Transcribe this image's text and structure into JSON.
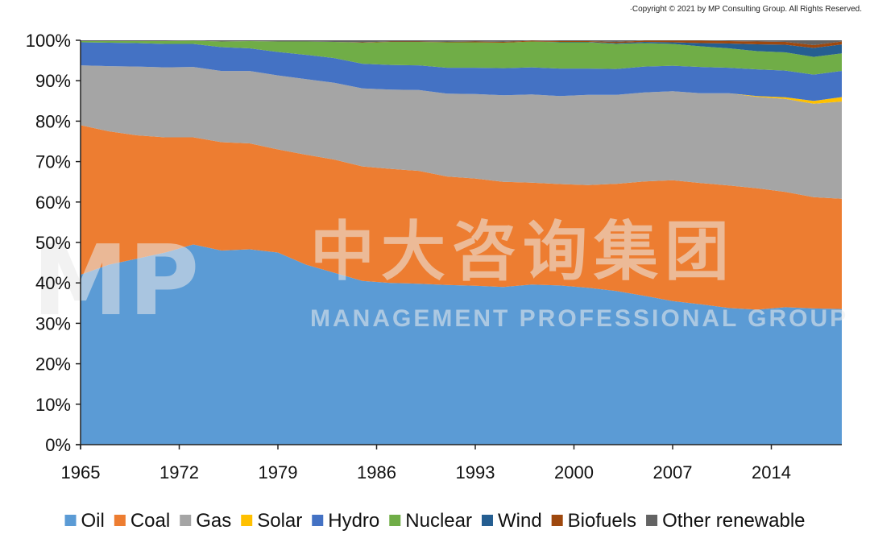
{
  "copyright": "·Copyright © 2021 by MP Consulting Group. All Rights Reserved.",
  "watermark": {
    "logo": "MP",
    "cn": "中大咨询集团",
    "en": "MANAGEMENT PROFESSIONAL GROUP"
  },
  "chart_data": {
    "type": "area",
    "stacked": true,
    "percent": true,
    "x": [
      1965,
      1967,
      1969,
      1971,
      1973,
      1975,
      1977,
      1979,
      1981,
      1983,
      1985,
      1987,
      1989,
      1991,
      1993,
      1995,
      1997,
      1999,
      2001,
      2003,
      2005,
      2007,
      2009,
      2011,
      2013,
      2015,
      2017,
      2019
    ],
    "xticks": [
      "1965",
      "1972",
      "1979",
      "1986",
      "1993",
      "2000",
      "2007",
      "2014"
    ],
    "xtick_values": [
      1965,
      1972,
      1979,
      1986,
      1993,
      2000,
      2007,
      2014
    ],
    "yticks": [
      "0%",
      "10%",
      "20%",
      "30%",
      "40%",
      "50%",
      "60%",
      "70%",
      "80%",
      "90%",
      "100%"
    ],
    "ylim": [
      0,
      100
    ],
    "xlim": [
      1965,
      2019
    ],
    "series": [
      {
        "name": "Oil",
        "color": "#5b9bd5",
        "values": [
          42.0,
          44.5,
          46.0,
          47.5,
          49.5,
          48.0,
          48.3,
          47.5,
          44.5,
          42.5,
          40.5,
          40.0,
          39.8,
          39.5,
          39.3,
          39.0,
          39.6,
          39.4,
          38.8,
          38.0,
          36.8,
          35.5,
          34.7,
          33.8,
          33.4,
          34.0,
          33.7,
          33.2
        ]
      },
      {
        "name": "Coal",
        "color": "#ed7d31",
        "values": [
          37.0,
          33.0,
          30.5,
          28.5,
          26.5,
          26.8,
          26.2,
          25.5,
          27.2,
          28.0,
          28.3,
          28.2,
          27.9,
          26.8,
          26.5,
          26.0,
          25.2,
          25.1,
          25.4,
          26.5,
          28.3,
          29.9,
          30.0,
          30.3,
          30.0,
          28.5,
          27.5,
          27.0
        ]
      },
      {
        "name": "Gas",
        "color": "#a5a5a5",
        "values": [
          14.8,
          16.1,
          17.0,
          17.3,
          17.4,
          17.6,
          17.9,
          18.3,
          18.7,
          19.0,
          19.3,
          19.6,
          20.0,
          20.5,
          20.9,
          21.4,
          21.8,
          21.8,
          22.3,
          22.0,
          22.0,
          22.0,
          22.2,
          22.8,
          22.6,
          23.0,
          23.1,
          23.8
        ]
      },
      {
        "name": "Solar",
        "color": "#ffc000",
        "values": [
          0,
          0,
          0,
          0,
          0,
          0,
          0,
          0,
          0,
          0,
          0,
          0,
          0,
          0,
          0,
          0,
          0,
          0,
          0,
          0,
          0,
          0,
          0,
          0,
          0.2,
          0.4,
          0.7,
          1.1
        ]
      },
      {
        "name": "Hydro",
        "color": "#4472c4",
        "values": [
          5.7,
          5.8,
          5.8,
          5.8,
          5.7,
          5.9,
          5.6,
          5.8,
          6.0,
          6.1,
          6.1,
          6.1,
          6.1,
          6.4,
          6.5,
          6.7,
          6.7,
          6.8,
          6.5,
          6.4,
          6.4,
          6.3,
          6.5,
          6.3,
          6.6,
          6.6,
          6.5,
          6.4
        ]
      },
      {
        "name": "Nuclear",
        "color": "#70ad47",
        "values": [
          0.3,
          0.4,
          0.5,
          0.7,
          0.8,
          1.4,
          1.8,
          2.6,
          3.3,
          4.0,
          5.2,
          5.7,
          5.8,
          6.3,
          6.3,
          6.3,
          6.4,
          6.5,
          6.5,
          6.2,
          5.8,
          5.4,
          5.1,
          4.8,
          4.5,
          4.5,
          4.4,
          4.3
        ]
      },
      {
        "name": "Wind",
        "color": "#255e91",
        "values": [
          0,
          0,
          0,
          0,
          0,
          0,
          0,
          0,
          0,
          0,
          0,
          0,
          0,
          0,
          0,
          0,
          0,
          0.1,
          0.1,
          0.2,
          0.3,
          0.4,
          0.8,
          1.2,
          1.7,
          1.9,
          2.2,
          2.2
        ]
      },
      {
        "name": "Biofuels",
        "color": "#9e480e",
        "values": [
          0,
          0,
          0,
          0,
          0,
          0,
          0,
          0,
          0,
          0,
          0.1,
          0.1,
          0.1,
          0.1,
          0.2,
          0.2,
          0.2,
          0.2,
          0.2,
          0.3,
          0.3,
          0.4,
          0.6,
          0.6,
          0.7,
          0.7,
          0.7,
          0.7
        ]
      },
      {
        "name": "Other renewable",
        "color": "#636363",
        "values": [
          0.2,
          0.2,
          0.2,
          0.2,
          0.1,
          0.3,
          0.2,
          0.3,
          0.3,
          0.4,
          0.5,
          0.3,
          0.3,
          0.4,
          0.3,
          0.4,
          0.1,
          0.2,
          0.2,
          0.4,
          0.1,
          0.1,
          0.1,
          0.2,
          0.3,
          0.4,
          1.2,
          0.3
        ]
      }
    ],
    "title": "",
    "xlabel": "",
    "ylabel": "",
    "grid": false,
    "legend_position": "bottom"
  }
}
